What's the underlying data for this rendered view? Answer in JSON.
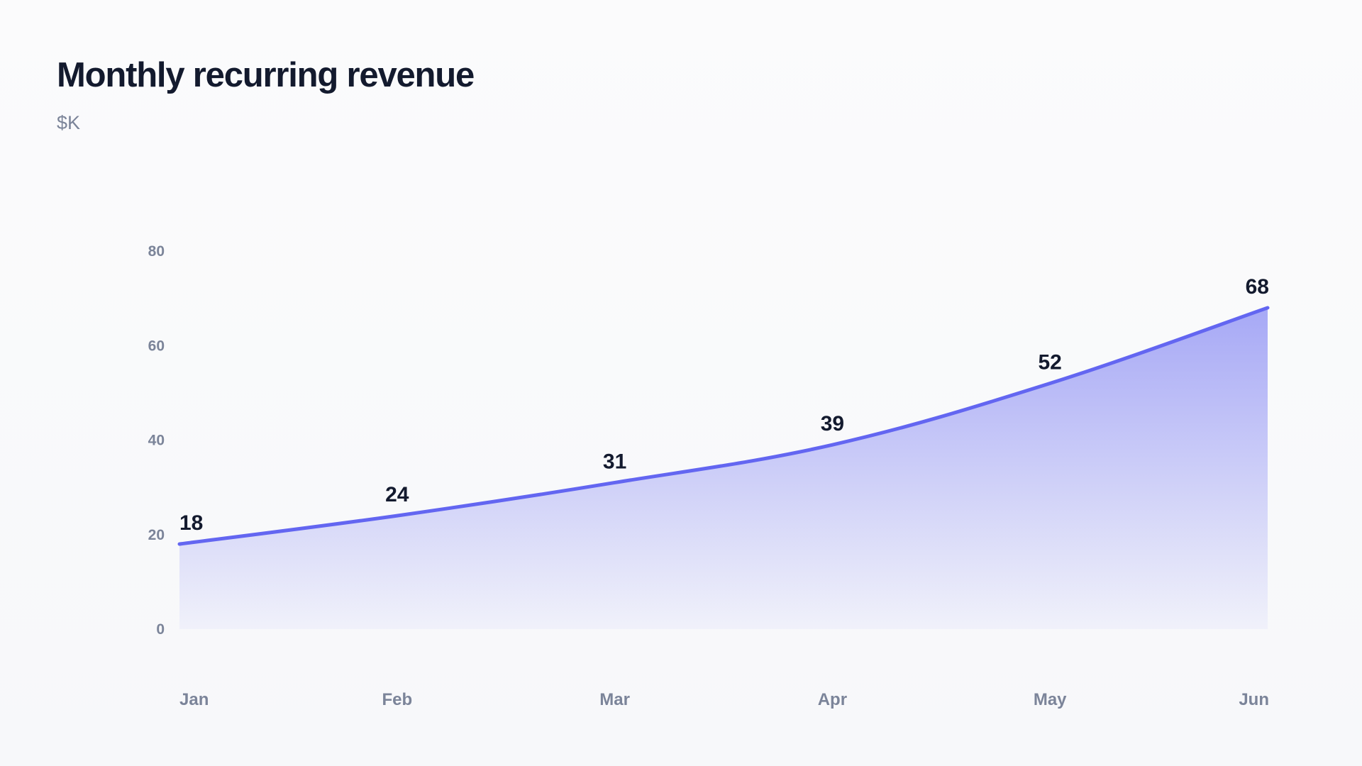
{
  "header": {
    "title": "Monthly recurring revenue",
    "subtitle": "$K"
  },
  "chart_data": {
    "type": "area",
    "title": "Monthly recurring revenue",
    "subtitle": "$K",
    "categories": [
      "Jan",
      "Feb",
      "Mar",
      "Apr",
      "May",
      "Jun"
    ],
    "values": [
      18,
      24,
      31,
      39,
      52,
      68
    ],
    "yticks": [
      0,
      20,
      40,
      60,
      80
    ],
    "ylim": [
      0,
      80
    ],
    "xlabel": "",
    "ylabel": "",
    "grid": false,
    "legend": "none",
    "data_labels": true,
    "colors": {
      "line": "#6366f1",
      "fill": "#6366f1",
      "label": "#131a2e",
      "tick": "#7b8499"
    }
  }
}
